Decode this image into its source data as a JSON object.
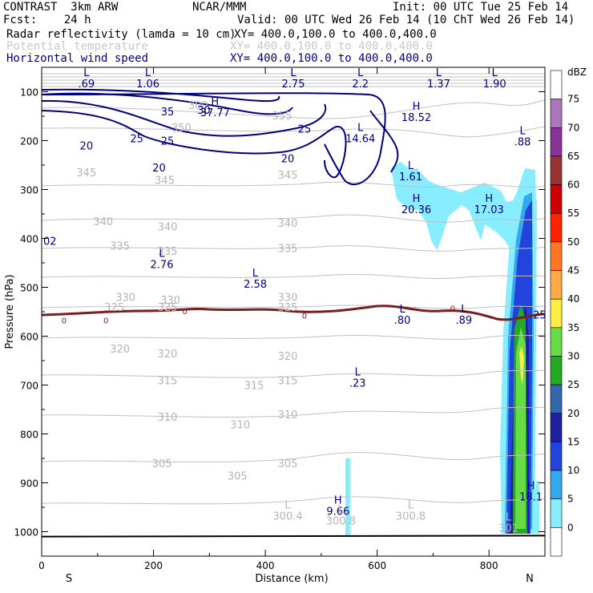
{
  "header": {
    "line1_left": "CONTRAST  3km ARW",
    "line1_mid": "NCAR/MMM",
    "line1_right": "Init: 00 UTC Tue 25 Feb 14",
    "line2_left": "Fcst:    24 h",
    "line2_right": "Valid: 00 UTC Wed 26 Feb 14 (10 ChT Wed 26 Feb 14)",
    "fields": [
      {
        "name": "Radar reflectivity (lamda = 10 cm)",
        "xy": "XY= 400.0,100.0 to 400.0,400.0",
        "color": "#000000"
      },
      {
        "name": "Potential temperature",
        "xy": "XY= 400.0,100.0 to 400.0,400.0",
        "color": "#c8c8c8"
      },
      {
        "name": "Horizontal wind speed",
        "xy": "XY= 400.0,100.0 to 400.0,400.0",
        "color": "#00007f"
      }
    ]
  },
  "chart_data": {
    "type": "cross-section",
    "title": "CONTRAST 3km ARW vertical cross-section",
    "xlabel": "Distance (km)",
    "ylabel": "Pressure (hPa)",
    "xlim": [
      0,
      900
    ],
    "ylim": [
      1050,
      50
    ],
    "x_ticks": [
      0,
      200,
      400,
      600,
      800
    ],
    "y_ticks": [
      100,
      200,
      300,
      400,
      500,
      600,
      700,
      800,
      900,
      1000
    ],
    "endpoint_left": "S",
    "endpoint_right": "N",
    "colorbar": {
      "unit": "dBZ",
      "levels": [
        0,
        5,
        10,
        15,
        20,
        25,
        30,
        35,
        40,
        45,
        50,
        55,
        60,
        65,
        70,
        75
      ],
      "colors": [
        "#ffffff",
        "#88eeff",
        "#33aaee",
        "#2244dd",
        "#1f1fa0",
        "#3366aa",
        "#22aa22",
        "#66dd44",
        "#ffee44",
        "#ffaa44",
        "#ff7722",
        "#ff2200",
        "#cc0000",
        "#993333",
        "#883399",
        "#aa77bb",
        "#ffffff"
      ]
    },
    "theta_labels": [
      {
        "text": "300",
        "x": 280,
        "p": 127
      },
      {
        "text": "350",
        "x": 250,
        "p": 173
      },
      {
        "text": "355",
        "x": 430,
        "p": 148
      },
      {
        "text": "345",
        "x": 80,
        "p": 265
      },
      {
        "text": "345",
        "x": 220,
        "p": 280
      },
      {
        "text": "345",
        "x": 440,
        "p": 270
      },
      {
        "text": "340",
        "x": 110,
        "p": 365
      },
      {
        "text": "340",
        "x": 225,
        "p": 375
      },
      {
        "text": "340",
        "x": 440,
        "p": 368
      },
      {
        "text": "335",
        "x": 140,
        "p": 415
      },
      {
        "text": "335",
        "x": 225,
        "p": 425
      },
      {
        "text": "335",
        "x": 440,
        "p": 420
      },
      {
        "text": "330",
        "x": 150,
        "p": 520
      },
      {
        "text": "330",
        "x": 230,
        "p": 525
      },
      {
        "text": "330",
        "x": 440,
        "p": 520
      },
      {
        "text": "325",
        "x": 130,
        "p": 540
      },
      {
        "text": "325",
        "x": 225,
        "p": 540
      },
      {
        "text": "325",
        "x": 440,
        "p": 540
      },
      {
        "text": "320",
        "x": 140,
        "p": 625
      },
      {
        "text": "320",
        "x": 225,
        "p": 635
      },
      {
        "text": "320",
        "x": 440,
        "p": 640
      },
      {
        "text": "315",
        "x": 225,
        "p": 690
      },
      {
        "text": "315",
        "x": 380,
        "p": 700
      },
      {
        "text": "315",
        "x": 440,
        "p": 690
      },
      {
        "text": "310",
        "x": 225,
        "p": 765
      },
      {
        "text": "310",
        "x": 355,
        "p": 780
      },
      {
        "text": "310",
        "x": 440,
        "p": 760
      },
      {
        "text": "305",
        "x": 215,
        "p": 860
      },
      {
        "text": "305",
        "x": 350,
        "p": 885
      },
      {
        "text": "305",
        "x": 440,
        "p": 860
      }
    ],
    "wind_labels": [
      {
        "text": "35",
        "x": 225,
        "p": 140
      },
      {
        "text": "30",
        "x": 290,
        "p": 137
      },
      {
        "text": "25",
        "x": 170,
        "p": 195
      },
      {
        "text": "25",
        "x": 225,
        "p": 200
      },
      {
        "text": "25",
        "x": 470,
        "p": 175
      },
      {
        "text": "20",
        "x": 80,
        "p": 210
      },
      {
        "text": "20",
        "x": 210,
        "p": 255
      },
      {
        "text": "20",
        "x": 440,
        "p": 236
      }
    ],
    "freezing_labels": [
      {
        "text": "0",
        "x": 40,
        "p": 567
      },
      {
        "text": "0",
        "x": 115,
        "p": 567
      },
      {
        "text": "0",
        "x": 256,
        "p": 548
      },
      {
        "text": "0",
        "x": 470,
        "p": 557
      },
      {
        "text": "0",
        "x": 735,
        "p": 543
      }
    ],
    "extrema_blue": [
      {
        "kind": "L",
        "value": ".69",
        "x": 80,
        "p": 68
      },
      {
        "kind": "L",
        "value": "1.06",
        "x": 190,
        "p": 68
      },
      {
        "kind": "L",
        "value": "2.75",
        "x": 450,
        "p": 68
      },
      {
        "kind": "L",
        "value": "2.2",
        "x": 570,
        "p": 68
      },
      {
        "kind": "L",
        "value": "1.37",
        "x": 710,
        "p": 68
      },
      {
        "kind": "L",
        "value": "1.90",
        "x": 810,
        "p": 68
      },
      {
        "kind": "H",
        "value": "37.77",
        "x": 310,
        "p": 127
      },
      {
        "kind": "H",
        "value": "18.52",
        "x": 670,
        "p": 137
      },
      {
        "kind": "L",
        "value": "14.64",
        "x": 570,
        "p": 180
      },
      {
        "kind": "L",
        "value": ".88",
        "x": 860,
        "p": 187
      },
      {
        "kind": "L",
        "value": "1.61",
        "x": 660,
        "p": 258
      },
      {
        "kind": "H",
        "value": "20.36",
        "x": 670,
        "p": 325
      },
      {
        "kind": "H",
        "value": "17.03",
        "x": 800,
        "p": 325
      },
      {
        "kind": "L",
        "value": "2.76",
        "x": 215,
        "p": 438
      },
      {
        "kind": "L",
        "value": "2.58",
        "x": 382,
        "p": 478
      },
      {
        "kind": "L",
        "value": ".80",
        "x": 645,
        "p": 552
      },
      {
        "kind": "L",
        "value": ".89",
        "x": 755,
        "p": 552
      },
      {
        "kind": "L",
        "value": ".23",
        "x": 565,
        "p": 680
      },
      {
        "kind": "H",
        "value": "9.66",
        "x": 530,
        "p": 943
      },
      {
        "kind": "H",
        "value": "18.1",
        "x": 875,
        "p": 913
      }
    ],
    "extrema_gray": [
      {
        "kind": "L",
        "value": "300.4",
        "x": 440,
        "p": 975
      },
      {
        "kind": "L",
        "value": "300.8",
        "x": 535,
        "p": 985
      },
      {
        "kind": "L",
        "value": "300.8",
        "x": 660,
        "p": 975
      },
      {
        "kind": "L",
        "value": "301",
        "x": 835,
        "p": 1000
      }
    ],
    "edge_label": {
      "text": "02",
      "x": 0,
      "p": 413
    },
    "edge_label_right": {
      "text": ".25",
      "x": 882,
      "p": 557
    }
  }
}
